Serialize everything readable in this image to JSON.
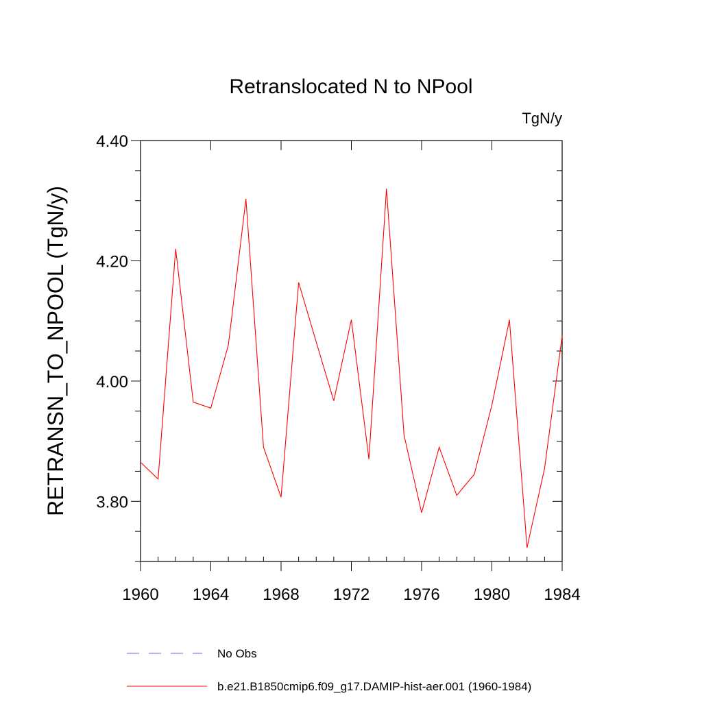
{
  "chart_data": {
    "type": "line",
    "title": "Retranslocated N to NPool",
    "units": "TgN/y",
    "ylabel": "RETRANSN_TO_NPOOL  (TgN/y)",
    "xlabel": "",
    "xlim": [
      1960,
      1984
    ],
    "ylim": [
      3.7,
      4.4
    ],
    "x_ticks": [
      1960,
      1964,
      1968,
      1972,
      1976,
      1980,
      1984
    ],
    "x_tick_labels": [
      "1960",
      "1964",
      "1968",
      "1972",
      "1976",
      "1980",
      "1984"
    ],
    "y_ticks": [
      3.8,
      4.0,
      4.2,
      4.4
    ],
    "y_tick_labels": [
      "3.80",
      "4.00",
      "4.20",
      "4.40"
    ],
    "y_minor_step": 0.05,
    "x_minor_step": 1,
    "grid": false,
    "legend_position": "bottom",
    "series": [
      {
        "name": "No Obs",
        "color": "#6a6acd",
        "dashed": true,
        "x": [],
        "values": []
      },
      {
        "name": "b.e21.B1850cmip6.f09_g17.DAMIP-hist-aer.001 (1960-1984)",
        "color": "#ff0000",
        "dashed": false,
        "x": [
          1960,
          1961,
          1962,
          1963,
          1964,
          1965,
          1966,
          1967,
          1968,
          1969,
          1970,
          1971,
          1972,
          1973,
          1974,
          1975,
          1976,
          1977,
          1978,
          1979,
          1980,
          1981,
          1982,
          1983,
          1984
        ],
        "values": [
          3.865,
          3.837,
          4.22,
          3.965,
          3.955,
          4.06,
          4.303,
          3.89,
          3.807,
          4.164,
          4.065,
          3.967,
          4.102,
          3.87,
          4.32,
          3.91,
          3.781,
          3.89,
          3.81,
          3.845,
          3.96,
          4.102,
          3.723,
          3.855,
          4.075
        ]
      }
    ]
  }
}
